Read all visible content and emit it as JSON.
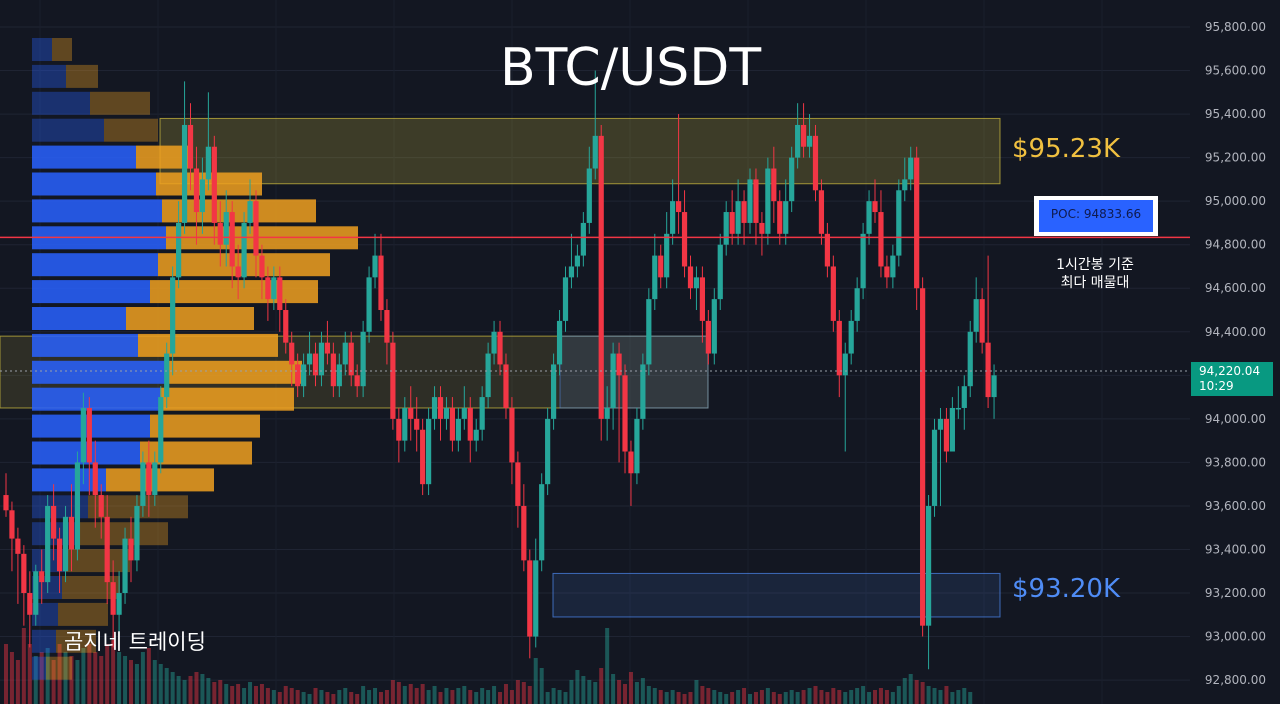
{
  "title": "BTC/USDT",
  "brand": "곰지네 트레이딩",
  "resistance_label": "$95.23K",
  "support_label": "$93.20K",
  "poc": {
    "label": "POC: 94833.66",
    "note_line1": "1시간봉 기준",
    "note_line2": "최다 매물대"
  },
  "last_price": {
    "price": "94,220.04",
    "countdown": "10:29"
  },
  "colors": {
    "bull": "#26a69a",
    "bear": "#f23645",
    "vp_buy": "#2962ff",
    "vp_sell": "#f0a020",
    "zone_yellow": "#d4c240",
    "zone_blue": "#4f8cf5",
    "poc_line": "#f23645"
  },
  "chart_data": {
    "type": "candlestick",
    "title": "BTC/USDT",
    "ylim": [
      92750,
      95850
    ],
    "y_ticks": [
      "95,800.00",
      "95,600.00",
      "95,400.00",
      "95,200.00",
      "95,000.00",
      "94,800.00",
      "94,600.00",
      "94,400.00",
      "94,200.00",
      "94,000.00",
      "93,800.00",
      "93,600.00",
      "93,400.00",
      "93,200.00",
      "93,000.00",
      "92,800.00"
    ],
    "poc_price": 94833.66,
    "zones": [
      {
        "name": "resistance",
        "from": 95080,
        "to": 95380
      },
      {
        "name": "value",
        "from": 94050,
        "to": 94380
      },
      {
        "name": "support",
        "from": 93090,
        "to": 93290
      }
    ],
    "volume_profile": {
      "bins": [
        95650,
        95530,
        95410,
        95290,
        95170,
        95050,
        94930,
        94810,
        94690,
        94570,
        94450,
        94330,
        94210,
        94090,
        93970,
        93850,
        93730,
        93610,
        93490,
        93370,
        93250,
        93130,
        93010,
        92890
      ],
      "total": [
        40,
        66,
        118,
        126,
        160,
        230,
        284,
        326,
        298,
        286,
        222,
        246,
        270,
        262,
        228,
        220,
        182,
        156,
        136,
        98,
        88,
        76,
        64,
        40
      ],
      "buy": [
        20,
        34,
        58,
        72,
        104,
        124,
        130,
        134,
        126,
        118,
        94,
        106,
        136,
        128,
        118,
        108,
        74,
        56,
        44,
        34,
        30,
        26,
        24,
        14
      ]
    },
    "candles": [
      [
        93650,
        93580,
        93750,
        93550
      ],
      [
        93580,
        93450,
        93620,
        93300
      ],
      [
        93450,
        93380,
        93500,
        93150
      ],
      [
        93380,
        93200,
        93420,
        93050
      ],
      [
        93200,
        93100,
        93300,
        92950
      ],
      [
        93100,
        93300,
        93330,
        93050
      ],
      [
        93300,
        93250,
        93400,
        93150
      ],
      [
        93250,
        93600,
        93650,
        93200
      ],
      [
        93600,
        93450,
        93700,
        93350
      ],
      [
        93450,
        93300,
        93500,
        93200
      ],
      [
        93300,
        93550,
        93600,
        93250
      ],
      [
        93550,
        93400,
        93700,
        93300
      ],
      [
        93400,
        93800,
        93850,
        93350
      ],
      [
        93800,
        94050,
        94120,
        93700
      ],
      [
        94050,
        93800,
        94100,
        93650
      ],
      [
        93800,
        93650,
        93900,
        93500
      ],
      [
        93650,
        93550,
        93700,
        93450
      ],
      [
        93550,
        93250,
        93650,
        93150
      ],
      [
        93250,
        93100,
        93350,
        92950
      ],
      [
        93100,
        93200,
        93300,
        93000
      ],
      [
        93200,
        93450,
        93500,
        93150
      ],
      [
        93450,
        93350,
        93550,
        93250
      ],
      [
        93350,
        93600,
        93650,
        93300
      ],
      [
        93600,
        93800,
        93850,
        93550
      ],
      [
        93800,
        93650,
        93900,
        93550
      ],
      [
        93650,
        93800,
        93850,
        93600
      ],
      [
        93800,
        94100,
        94150,
        93750
      ],
      [
        94100,
        94300,
        94350,
        94050
      ],
      [
        94300,
        94650,
        94700,
        94200
      ],
      [
        94650,
        94900,
        95000,
        94600
      ],
      [
        94900,
        95350,
        95550,
        94850
      ],
      [
        95350,
        95150,
        95450,
        95050
      ],
      [
        95150,
        94950,
        95250,
        94800
      ],
      [
        94950,
        95100,
        95200,
        94850
      ],
      [
        95100,
        95250,
        95500,
        95050
      ],
      [
        95250,
        94900,
        95300,
        94800
      ],
      [
        94900,
        94800,
        95000,
        94700
      ],
      [
        94800,
        94950,
        95050,
        94700
      ],
      [
        94950,
        94700,
        95000,
        94600
      ],
      [
        94700,
        94650,
        94800,
        94550
      ],
      [
        94650,
        94900,
        94950,
        94600
      ],
      [
        94900,
        95000,
        95100,
        94850
      ],
      [
        95000,
        94750,
        95050,
        94650
      ],
      [
        94750,
        94650,
        94800,
        94550
      ],
      [
        94650,
        94550,
        94700,
        94450
      ],
      [
        94550,
        94650,
        94700,
        94500
      ],
      [
        94650,
        94500,
        94700,
        94400
      ],
      [
        94500,
        94350,
        94550,
        94300
      ],
      [
        94350,
        94250,
        94400,
        94150
      ],
      [
        94250,
        94150,
        94300,
        94100
      ],
      [
        94150,
        94250,
        94300,
        94100
      ],
      [
        94250,
        94300,
        94400,
        94200
      ],
      [
        94300,
        94200,
        94350,
        94150
      ],
      [
        94200,
        94350,
        94400,
        94150
      ],
      [
        94350,
        94300,
        94450,
        94250
      ],
      [
        94300,
        94150,
        94350,
        94100
      ],
      [
        94150,
        94250,
        94300,
        94100
      ],
      [
        94250,
        94350,
        94400,
        94200
      ],
      [
        94350,
        94200,
        94400,
        94150
      ],
      [
        94200,
        94150,
        94250,
        94100
      ],
      [
        94150,
        94400,
        94450,
        94100
      ],
      [
        94400,
        94650,
        94700,
        94350
      ],
      [
        94650,
        94750,
        94850,
        94600
      ],
      [
        94750,
        94500,
        94850,
        94450
      ],
      [
        94500,
        94350,
        94550,
        94250
      ],
      [
        94350,
        94000,
        94400,
        93950
      ],
      [
        94000,
        93900,
        94050,
        93800
      ],
      [
        93900,
        94050,
        94100,
        93850
      ],
      [
        94050,
        94000,
        94150,
        93900
      ],
      [
        94000,
        93950,
        94100,
        93850
      ],
      [
        93950,
        93700,
        94000,
        93650
      ],
      [
        93700,
        94000,
        94050,
        93650
      ],
      [
        94000,
        94100,
        94150,
        93950
      ],
      [
        94100,
        94000,
        94150,
        93900
      ],
      [
        94000,
        94050,
        94100,
        93950
      ],
      [
        94050,
        93900,
        94100,
        93850
      ],
      [
        93900,
        94000,
        94050,
        93850
      ],
      [
        94000,
        94050,
        94150,
        93950
      ],
      [
        94050,
        93900,
        94100,
        93800
      ],
      [
        93900,
        93950,
        94000,
        93850
      ],
      [
        93950,
        94100,
        94150,
        93900
      ],
      [
        94100,
        94300,
        94350,
        94050
      ],
      [
        94300,
        94400,
        94450,
        94250
      ],
      [
        94400,
        94250,
        94450,
        94200
      ],
      [
        94250,
        94050,
        94300,
        94000
      ],
      [
        94050,
        93800,
        94100,
        93700
      ],
      [
        93800,
        93600,
        93850,
        93500
      ],
      [
        93600,
        93350,
        93700,
        93300
      ],
      [
        93350,
        93000,
        93400,
        92900
      ],
      [
        93000,
        93350,
        93450,
        92950
      ],
      [
        93350,
        93700,
        93750,
        93300
      ],
      [
        93700,
        94000,
        94050,
        93650
      ],
      [
        94000,
        94250,
        94300,
        93950
      ],
      [
        94250,
        94450,
        94500,
        94200
      ],
      [
        94450,
        94650,
        94700,
        94400
      ],
      [
        94650,
        94700,
        94850,
        94600
      ],
      [
        94700,
        94750,
        94800,
        94650
      ],
      [
        94750,
        94900,
        94950,
        94700
      ],
      [
        94900,
        95150,
        95250,
        94850
      ],
      [
        95150,
        95300,
        95600,
        95100
      ],
      [
        95300,
        94000,
        95350,
        93900
      ],
      [
        94000,
        94050,
        94150,
        93900
      ],
      [
        94050,
        94300,
        94350,
        93950
      ],
      [
        94300,
        94200,
        94350,
        93800
      ],
      [
        94200,
        93850,
        94250,
        93750
      ],
      [
        93850,
        93750,
        93900,
        93600
      ],
      [
        93750,
        94000,
        94050,
        93700
      ],
      [
        94000,
        94250,
        94300,
        93950
      ],
      [
        94250,
        94550,
        94600,
        94200
      ],
      [
        94550,
        94750,
        94850,
        94500
      ],
      [
        94750,
        94650,
        94800,
        94600
      ],
      [
        94650,
        94850,
        94950,
        94600
      ],
      [
        94850,
        95000,
        95100,
        94800
      ],
      [
        95000,
        94950,
        95400,
        94850
      ],
      [
        94950,
        94700,
        95050,
        94650
      ],
      [
        94700,
        94600,
        94750,
        94550
      ],
      [
        94600,
        94650,
        94700,
        94500
      ],
      [
        94650,
        94450,
        94700,
        94350
      ],
      [
        94450,
        94300,
        94500,
        94250
      ],
      [
        94300,
        94550,
        94600,
        94250
      ],
      [
        94550,
        94800,
        94850,
        94500
      ],
      [
        94800,
        94950,
        95000,
        94750
      ],
      [
        94950,
        94850,
        95050,
        94800
      ],
      [
        94850,
        95000,
        95100,
        94800
      ],
      [
        95000,
        94900,
        95050,
        94800
      ],
      [
        94900,
        95100,
        95150,
        94850
      ],
      [
        95100,
        94900,
        95150,
        94800
      ],
      [
        94900,
        94850,
        94950,
        94750
      ],
      [
        94850,
        95150,
        95200,
        94800
      ],
      [
        95150,
        95000,
        95250,
        94900
      ],
      [
        95000,
        94850,
        95050,
        94800
      ],
      [
        94850,
        95000,
        95100,
        94800
      ],
      [
        95000,
        95200,
        95250,
        94950
      ],
      [
        95200,
        95350,
        95450,
        95150
      ],
      [
        95350,
        95250,
        95450,
        95200
      ],
      [
        95250,
        95300,
        95400,
        95200
      ],
      [
        95300,
        95050,
        95350,
        95000
      ],
      [
        95050,
        94850,
        95100,
        94800
      ],
      [
        94850,
        94700,
        94900,
        94650
      ],
      [
        94700,
        94450,
        94750,
        94400
      ],
      [
        94450,
        94200,
        94500,
        94100
      ],
      [
        94200,
        94300,
        94350,
        93850
      ],
      [
        94300,
        94450,
        94500,
        94250
      ],
      [
        94450,
        94600,
        94650,
        94400
      ],
      [
        94600,
        94850,
        94900,
        94550
      ],
      [
        94850,
        95000,
        95050,
        94800
      ],
      [
        95000,
        94950,
        95100,
        94900
      ],
      [
        94950,
        94700,
        95050,
        94650
      ],
      [
        94700,
        94650,
        94750,
        94600
      ],
      [
        94650,
        94750,
        94800,
        94600
      ],
      [
        94750,
        95050,
        95100,
        94700
      ],
      [
        95050,
        95100,
        95200,
        95000
      ],
      [
        95100,
        95200,
        95250,
        95050
      ],
      [
        95200,
        94600,
        95250,
        94500
      ],
      [
        94600,
        93050,
        94650,
        93000
      ],
      [
        93050,
        93600,
        93650,
        92850
      ],
      [
        93600,
        93950,
        94000,
        93550
      ],
      [
        93950,
        94000,
        94050,
        93600
      ],
      [
        94000,
        93850,
        94050,
        93800
      ],
      [
        93850,
        94050,
        94100,
        93850
      ],
      [
        94050,
        94050,
        94150,
        94000
      ],
      [
        94050,
        94150,
        94200,
        93950
      ],
      [
        94150,
        94400,
        94450,
        94100
      ],
      [
        94400,
        94550,
        94650,
        94350
      ],
      [
        94550,
        94350,
        94600,
        94300
      ],
      [
        94350,
        94100,
        94750,
        94050
      ],
      [
        94100,
        94200,
        94250,
        94000
      ]
    ],
    "volumes": [
      300,
      260,
      220,
      380,
      300,
      240,
      260,
      280,
      220,
      300,
      260,
      240,
      220,
      280,
      300,
      260,
      240,
      300,
      320,
      260,
      240,
      220,
      200,
      260,
      280,
      220,
      200,
      180,
      160,
      140,
      120,
      140,
      160,
      150,
      130,
      110,
      120,
      100,
      90,
      100,
      80,
      110,
      90,
      100,
      80,
      70,
      60,
      90,
      80,
      70,
      60,
      50,
      80,
      70,
      60,
      50,
      70,
      80,
      60,
      50,
      90,
      70,
      80,
      60,
      70,
      120,
      110,
      90,
      100,
      80,
      100,
      70,
      90,
      60,
      80,
      70,
      80,
      90,
      70,
      60,
      80,
      70,
      90,
      60,
      100,
      70,
      120,
      110,
      90,
      230,
      180,
      60,
      80,
      70,
      60,
      120,
      170,
      140,
      120,
      110,
      180,
      380,
      150,
      120,
      100,
      160,
      110,
      130,
      90,
      80,
      70,
      60,
      70,
      60,
      50,
      60,
      120,
      90,
      80,
      70,
      60,
      50,
      60,
      70,
      80,
      50,
      60,
      70,
      80,
      60,
      50,
      60,
      70,
      60,
      70,
      80,
      90,
      70,
      60,
      80,
      70,
      60,
      70,
      80,
      90,
      60,
      70,
      80,
      70,
      60,
      90,
      130,
      150,
      120,
      110,
      90,
      80,
      70,
      90,
      60,
      70,
      80,
      60
    ]
  }
}
